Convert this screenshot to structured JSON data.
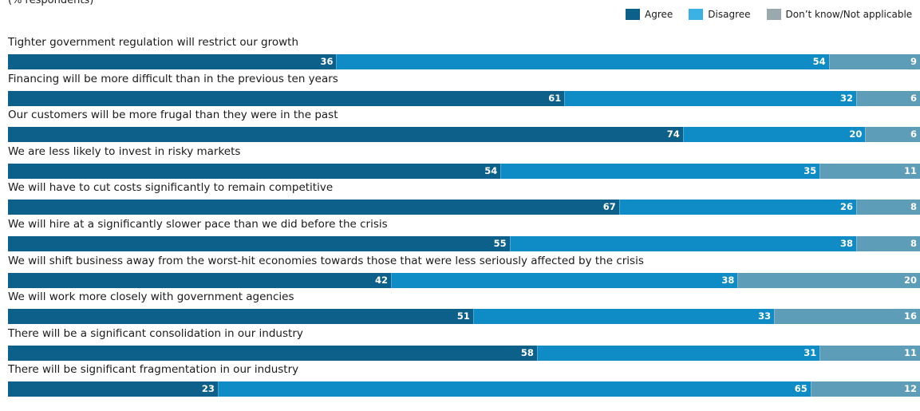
{
  "chart_data": {
    "type": "bar",
    "orientation": "horizontal",
    "stacked": true,
    "subtitle": "(% respondents)",
    "legend_position": "top-right",
    "xlim": [
      0,
      100
    ],
    "categories": [
      "Tighter government regulation will restrict our growth",
      "Financing will be more difficult than in the previous ten years",
      "Our customers will be more frugal than they were in the past",
      "We are less likely to invest in risky markets",
      "We will have to cut costs significantly to remain competitive",
      "We will hire at a significantly slower pace than we did before the crisis",
      "We will shift business away from the worst-hit economies towards those that were less seriously affected by the crisis",
      "We will work more closely with government agencies",
      "There will be a significant consolidation in our industry",
      "There will be significant fragmentation in our industry"
    ],
    "series": [
      {
        "name": "Agree",
        "color": "#0d6089",
        "values": [
          36,
          61,
          74,
          54,
          67,
          55,
          42,
          51,
          58,
          23
        ]
      },
      {
        "name": "Disagree",
        "color": "#0f8cc6",
        "values": [
          54,
          32,
          20,
          35,
          26,
          38,
          38,
          33,
          31,
          65
        ]
      },
      {
        "name": "Don’t know/Not applicable",
        "color": "#5e9db8",
        "values": [
          9,
          6,
          6,
          11,
          8,
          8,
          20,
          16,
          11,
          12
        ]
      }
    ]
  },
  "legend": {
    "items": [
      {
        "label": "Agree",
        "color": "#0d6089"
      },
      {
        "label": "Disagree",
        "color": "#3bb2e3"
      },
      {
        "label": "Don’t know/Not applicable",
        "color": "#9aa9ad"
      }
    ]
  }
}
